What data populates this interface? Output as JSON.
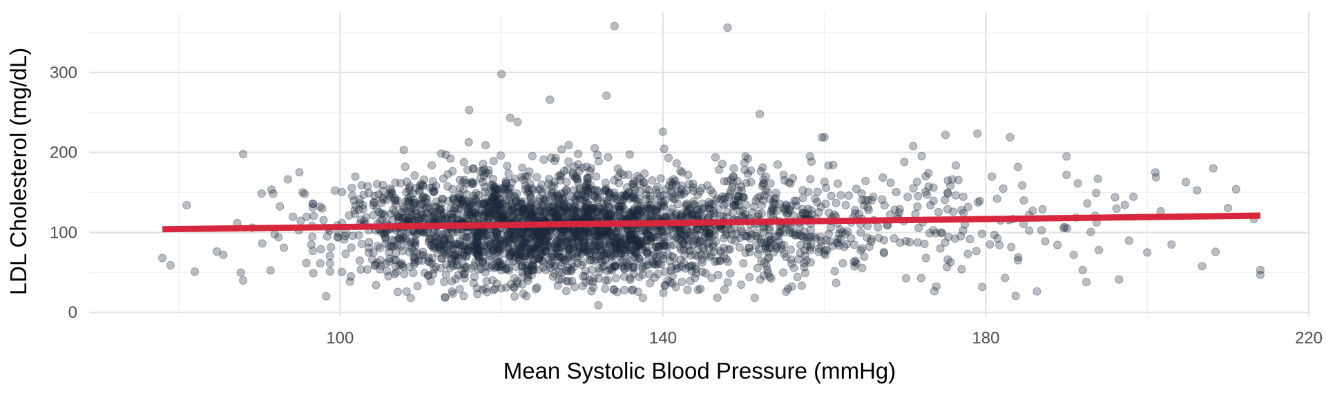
{
  "chart_data": {
    "type": "scatter",
    "title": "",
    "xlabel": "Mean Systolic Blood Pressure (mmHg)",
    "ylabel": "LDL Cholesterol (mg/dL)",
    "xlim": [
      69,
      220
    ],
    "ylim": [
      -5,
      375
    ],
    "x_ticks": [
      100,
      140,
      180,
      220
    ],
    "y_ticks": [
      0,
      100,
      200,
      300
    ],
    "grid": true,
    "legend": "none",
    "point_color": "#1b2838",
    "point_opacity": 0.3,
    "trend_color": "#d7263d",
    "confidence_band_color": "#f2c14e",
    "trend_line": {
      "x": [
        78,
        214
      ],
      "y": [
        104,
        121
      ]
    },
    "approx_point_count": 3000,
    "notable_points": [
      {
        "x": 134,
        "y": 358
      },
      {
        "x": 148,
        "y": 356
      },
      {
        "x": 120,
        "y": 298
      },
      {
        "x": 133,
        "y": 271
      },
      {
        "x": 126,
        "y": 266
      },
      {
        "x": 116,
        "y": 253
      },
      {
        "x": 152,
        "y": 248
      },
      {
        "x": 122,
        "y": 238
      },
      {
        "x": 140,
        "y": 226
      },
      {
        "x": 175,
        "y": 222
      },
      {
        "x": 183,
        "y": 219
      },
      {
        "x": 160,
        "y": 219
      },
      {
        "x": 171,
        "y": 208
      },
      {
        "x": 88,
        "y": 198
      },
      {
        "x": 190,
        "y": 195
      },
      {
        "x": 201,
        "y": 175
      },
      {
        "x": 190,
        "y": 172
      },
      {
        "x": 211,
        "y": 154
      },
      {
        "x": 196,
        "y": 144
      },
      {
        "x": 81,
        "y": 134
      },
      {
        "x": 78,
        "y": 68
      },
      {
        "x": 79,
        "y": 59
      },
      {
        "x": 82,
        "y": 51
      },
      {
        "x": 88,
        "y": 40
      },
      {
        "x": 200,
        "y": 75
      },
      {
        "x": 203,
        "y": 85
      },
      {
        "x": 192,
        "y": 53
      },
      {
        "x": 214,
        "y": 53
      },
      {
        "x": 214,
        "y": 47
      },
      {
        "x": 132,
        "y": 9
      },
      {
        "x": 113,
        "y": 19
      },
      {
        "x": 119,
        "y": 28
      },
      {
        "x": 172,
        "y": 43
      },
      {
        "x": 177,
        "y": 54
      },
      {
        "x": 184,
        "y": 69
      },
      {
        "x": 194,
        "y": 78
      }
    ],
    "cloud_regions": [
      {
        "cx": 124,
        "sx": 12,
        "cy": 107,
        "sy": 35,
        "n": 2300
      },
      {
        "cx": 150,
        "sx": 12,
        "cy": 110,
        "sy": 36,
        "n": 600
      },
      {
        "cx": 178,
        "sx": 14,
        "cy": 115,
        "sy": 38,
        "n": 110
      }
    ]
  }
}
